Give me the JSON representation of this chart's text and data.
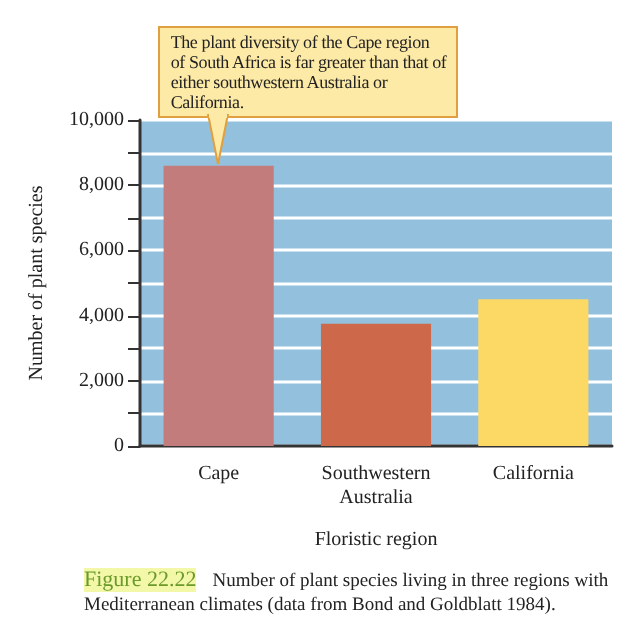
{
  "chart_data": {
    "type": "bar",
    "xlabel": "Floristic region",
    "ylabel": "Number of plant species",
    "categories": [
      "Cape",
      "Southwestern\nAustralia",
      "California"
    ],
    "values": [
      8600,
      3750,
      4500
    ],
    "colors": [
      "#c17c7b",
      "#cd684b",
      "#fcd864"
    ],
    "ylim": [
      0,
      10000
    ],
    "yticks": [
      0,
      {
        "value": 1000,
        "label": null
      },
      {
        "value": 2000,
        "label": "2,000"
      },
      {
        "value": 3000,
        "label": null
      },
      {
        "value": 4000,
        "label": "4,000"
      },
      {
        "value": 5000,
        "label": null
      },
      {
        "value": 6000,
        "label": "6,000"
      },
      {
        "value": 7000,
        "label": null
      },
      {
        "value": 8000,
        "label": "8,000"
      },
      {
        "value": 9000,
        "label": null
      },
      {
        "value": 10000,
        "label": "10,000"
      }
    ],
    "grid": "y",
    "annotations": [
      {
        "text": "The plant diversity of the Cape region of South Africa is far greater than that of either southwestern Australia or California.",
        "x": "Cape",
        "y": 8600
      },
      "Figure 22.22",
      "Number of plant species living in three regions with Mediterranean climates (data from Bond and Goldblatt 1984)."
    ]
  }
}
